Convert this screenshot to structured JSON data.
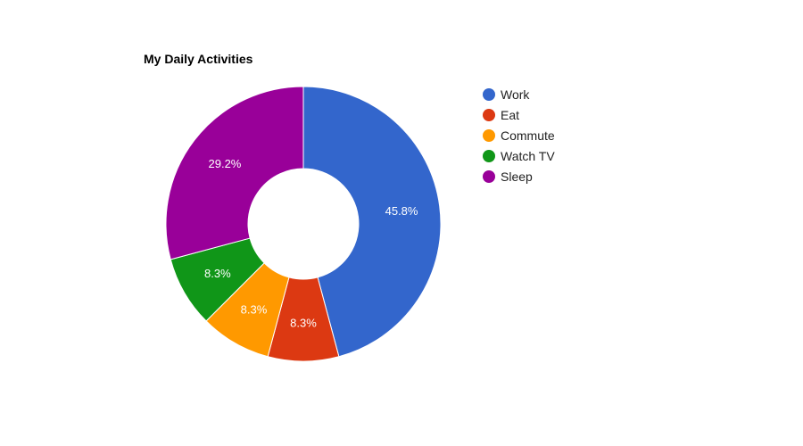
{
  "chart_data": {
    "type": "pie",
    "title": "My Daily Activities",
    "categories": [
      "Work",
      "Eat",
      "Commute",
      "Watch TV",
      "Sleep"
    ],
    "values": [
      11,
      2,
      2,
      2,
      7
    ],
    "percent_labels": [
      "45.8%",
      "8.3%",
      "8.3%",
      "8.3%",
      "29.2%"
    ],
    "colors": [
      "#3366cc",
      "#dc3912",
      "#ff9900",
      "#109618",
      "#990099"
    ],
    "donut": true,
    "legend_position": "right"
  }
}
